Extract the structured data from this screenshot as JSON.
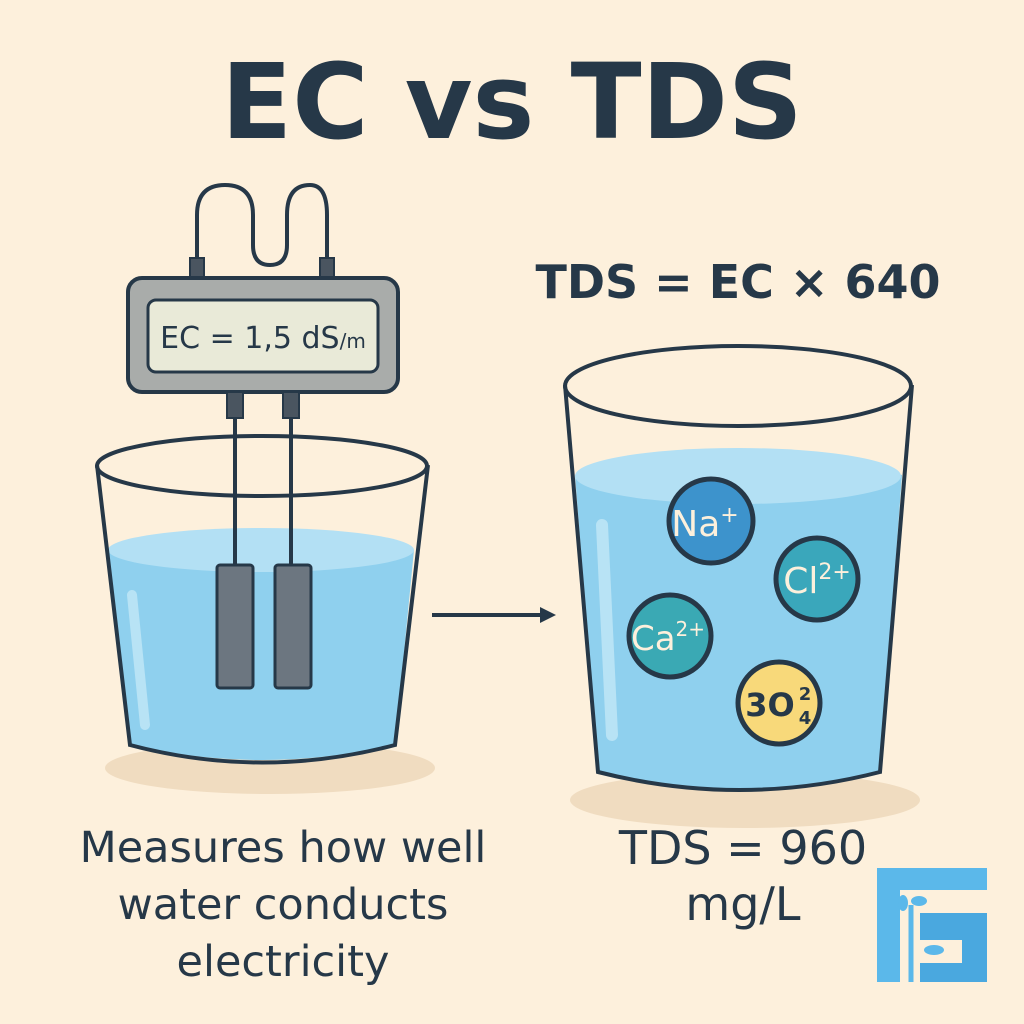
{
  "title": "EC vs TDS",
  "meter": {
    "reading_main": "EC = 1,5 dS",
    "reading_unit": "/m"
  },
  "formula": "TDS = EC × 640",
  "left_caption": [
    "Measures how well",
    "water conducts",
    "electricity"
  ],
  "right_caption": [
    "TDS = 960",
    "mg/L"
  ],
  "ions": [
    {
      "symbol": "Na",
      "charge": "+",
      "color": "#3d93cc"
    },
    {
      "symbol": "Cl",
      "charge": "2+",
      "color": "#3aa7bb"
    },
    {
      "symbol": "Ca",
      "charge": "2+",
      "color": "#3aa9b4"
    },
    {
      "symbol": "3O",
      "charge": "2",
      "sub": "4",
      "color": "#f8d97a"
    }
  ],
  "colors": {
    "background": "#fdf0dc",
    "text": "#263848",
    "water": "#8fd0ee",
    "logo": "#5bb8ea"
  }
}
